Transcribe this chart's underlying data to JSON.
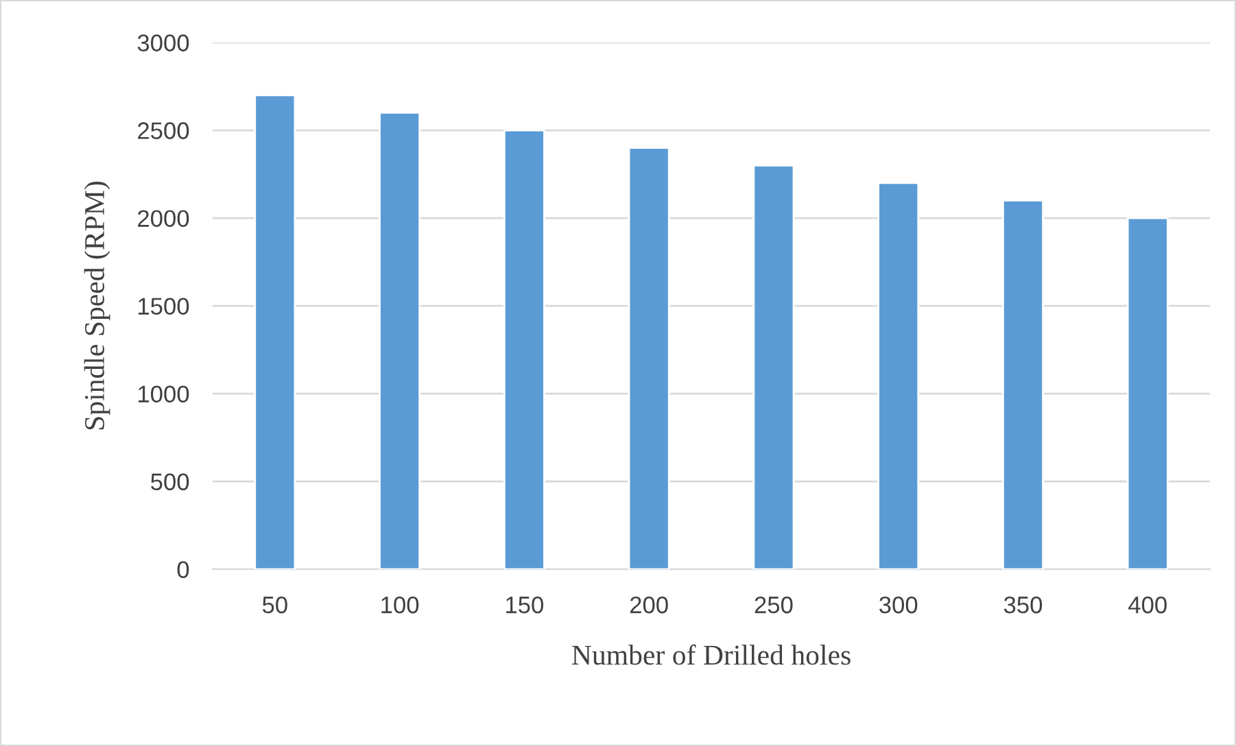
{
  "chart_data": {
    "type": "bar",
    "xlabel": "Number of Drilled holes",
    "ylabel": "Spindle Speed (RPM)",
    "categories": [
      "50",
      "100",
      "150",
      "200",
      "250",
      "300",
      "350",
      "400"
    ],
    "values": [
      2700,
      2600,
      2500,
      2400,
      2300,
      2200,
      2100,
      2000
    ],
    "color": "#5b9bd5",
    "ylim": [
      0,
      3000
    ],
    "yticks": [
      0,
      500,
      1000,
      1500,
      2000,
      2500,
      3000
    ],
    "grid": "y"
  }
}
